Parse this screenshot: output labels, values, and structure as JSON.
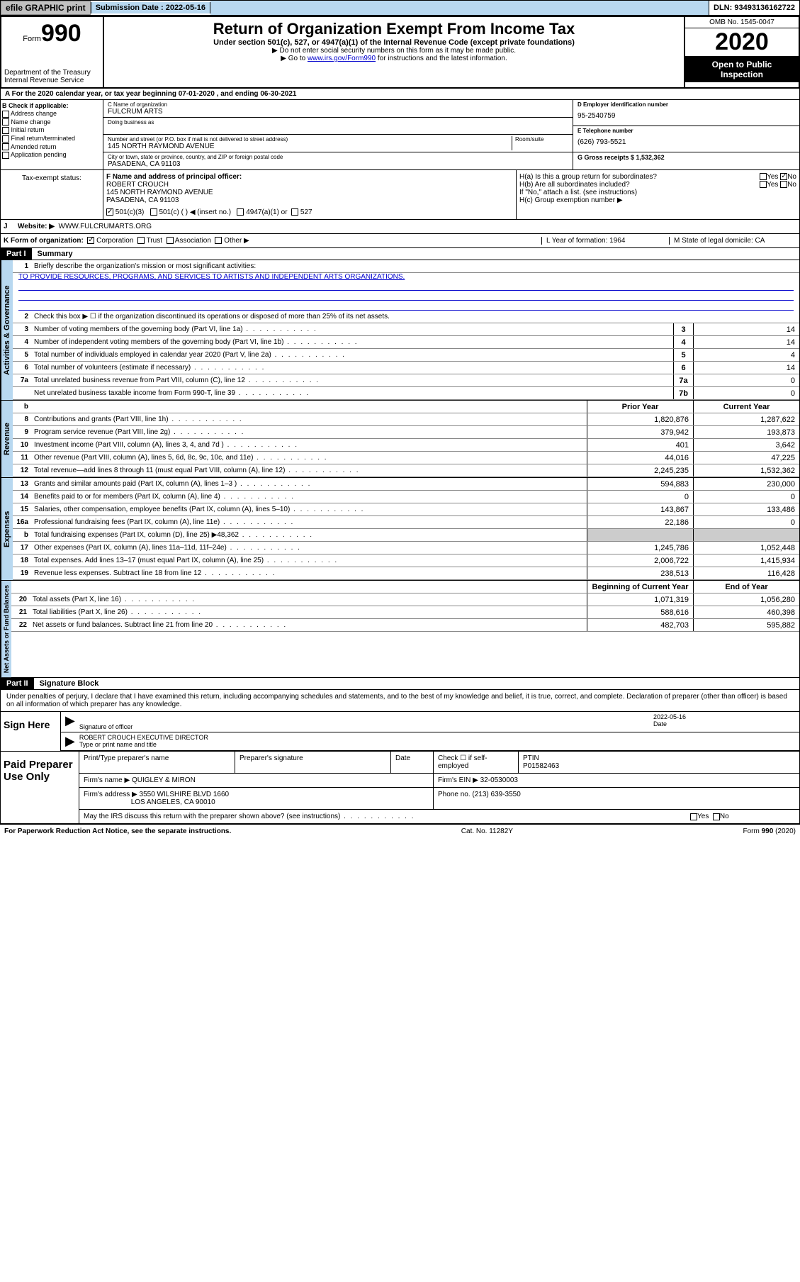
{
  "topbar": {
    "efile": "efile GRAPHIC print",
    "submission_label": "Submission Date : 2022-05-16",
    "dln": "DLN: 93493136162722"
  },
  "header": {
    "form_label": "Form",
    "form_num": "990",
    "dept1": "Department of the Treasury",
    "dept2": "Internal Revenue Service",
    "title": "Return of Organization Exempt From Income Tax",
    "subtitle": "Under section 501(c), 527, or 4947(a)(1) of the Internal Revenue Code (except private foundations)",
    "note1": "▶ Do not enter social security numbers on this form as it may be made public.",
    "note2_pre": "▶ Go to ",
    "note2_link": "www.irs.gov/Form990",
    "note2_post": " for instructions and the latest information.",
    "omb": "OMB No. 1545-0047",
    "year": "2020",
    "open1": "Open to Public",
    "open2": "Inspection"
  },
  "line_a": "A For the 2020 calendar year, or tax year beginning 07-01-2020    , and ending 06-30-2021",
  "box_b": {
    "title": "B Check if applicable:",
    "opts": [
      "Address change",
      "Name change",
      "Initial return",
      "Final return/terminated",
      "Amended return",
      "Application pending"
    ]
  },
  "box_c": {
    "name_label": "C Name of organization",
    "name": "FULCRUM ARTS",
    "dba_label": "Doing business as",
    "addr_label": "Number and street (or P.O. box if mail is not delivered to street address)",
    "room_label": "Room/suite",
    "addr": "145 NORTH RAYMOND AVENUE",
    "city_label": "City or town, state or province, country, and ZIP or foreign postal code",
    "city": "PASADENA, CA  91103"
  },
  "box_d": {
    "label": "D Employer identification number",
    "val": "95-2540759"
  },
  "box_e": {
    "label": "E Telephone number",
    "val": "(626) 793-5521"
  },
  "box_g": {
    "label": "G Gross receipts $ 1,532,362"
  },
  "box_f": {
    "label": "F  Name and address of principal officer:",
    "name": "ROBERT CROUCH",
    "addr1": "145 NORTH RAYMOND AVENUE",
    "addr2": "PASADENA, CA  91103"
  },
  "box_h": {
    "a": "H(a)  Is this a group return for subordinates?",
    "b": "H(b)  Are all subordinates included?",
    "b_note": "If \"No,\" attach a list. (see instructions)",
    "c": "H(c)  Group exemption number ▶",
    "yes": "Yes",
    "no": "No"
  },
  "tax_exempt": {
    "label": "Tax-exempt status:",
    "o1": "501(c)(3)",
    "o2": "501(c) (  ) ◀ (insert no.)",
    "o3": "4947(a)(1) or",
    "o4": "527"
  },
  "line_j": {
    "label": "J",
    "text": "Website: ▶",
    "val": "WWW.FULCRUMARTS.ORG"
  },
  "line_k": {
    "label": "K Form of organization:",
    "opts": [
      "Corporation",
      "Trust",
      "Association",
      "Other ▶"
    ],
    "l_label": "L Year of formation: 1964",
    "m_label": "M State of legal domicile: CA"
  },
  "part1": {
    "hdr": "Part I",
    "title": "Summary"
  },
  "summary": {
    "q1": "Briefly describe the organization's mission or most significant activities:",
    "mission": "TO PROVIDE RESOURCES, PROGRAMS, AND SERVICES TO ARTISTS AND INDEPENDENT ARTS ORGANIZATIONS.",
    "q2": "Check this box ▶ ☐  if the organization discontinued its operations or disposed of more than 25% of its net assets.",
    "rows_gov": [
      {
        "n": "3",
        "d": "Number of voting members of the governing body (Part VI, line 1a)",
        "b": "3",
        "v": "14"
      },
      {
        "n": "4",
        "d": "Number of independent voting members of the governing body (Part VI, line 1b)",
        "b": "4",
        "v": "14"
      },
      {
        "n": "5",
        "d": "Total number of individuals employed in calendar year 2020 (Part V, line 2a)",
        "b": "5",
        "v": "4"
      },
      {
        "n": "6",
        "d": "Total number of volunteers (estimate if necessary)",
        "b": "6",
        "v": "14"
      },
      {
        "n": "7a",
        "d": "Total unrelated business revenue from Part VIII, column (C), line 12",
        "b": "7a",
        "v": "0"
      },
      {
        "n": "",
        "d": "Net unrelated business taxable income from Form 990-T, line 39",
        "b": "7b",
        "v": "0"
      }
    ],
    "col_hdr": {
      "b": "b",
      "py": "Prior Year",
      "cy": "Current Year"
    },
    "rows_rev": [
      {
        "n": "8",
        "d": "Contributions and grants (Part VIII, line 1h)",
        "py": "1,820,876",
        "cy": "1,287,622"
      },
      {
        "n": "9",
        "d": "Program service revenue (Part VIII, line 2g)",
        "py": "379,942",
        "cy": "193,873"
      },
      {
        "n": "10",
        "d": "Investment income (Part VIII, column (A), lines 3, 4, and 7d )",
        "py": "401",
        "cy": "3,642"
      },
      {
        "n": "11",
        "d": "Other revenue (Part VIII, column (A), lines 5, 6d, 8c, 9c, 10c, and 11e)",
        "py": "44,016",
        "cy": "47,225"
      },
      {
        "n": "12",
        "d": "Total revenue—add lines 8 through 11 (must equal Part VIII, column (A), line 12)",
        "py": "2,245,235",
        "cy": "1,532,362"
      }
    ],
    "rows_exp": [
      {
        "n": "13",
        "d": "Grants and similar amounts paid (Part IX, column (A), lines 1–3 )",
        "py": "594,883",
        "cy": "230,000"
      },
      {
        "n": "14",
        "d": "Benefits paid to or for members (Part IX, column (A), line 4)",
        "py": "0",
        "cy": "0"
      },
      {
        "n": "15",
        "d": "Salaries, other compensation, employee benefits (Part IX, column (A), lines 5–10)",
        "py": "143,867",
        "cy": "133,486"
      },
      {
        "n": "16a",
        "d": "Professional fundraising fees (Part IX, column (A), line 11e)",
        "py": "22,186",
        "cy": "0"
      },
      {
        "n": "b",
        "d": "Total fundraising expenses (Part IX, column (D), line 25) ▶48,362",
        "py": "",
        "cy": "",
        "shade": true
      },
      {
        "n": "17",
        "d": "Other expenses (Part IX, column (A), lines 11a–11d, 11f–24e)",
        "py": "1,245,786",
        "cy": "1,052,448"
      },
      {
        "n": "18",
        "d": "Total expenses. Add lines 13–17 (must equal Part IX, column (A), line 25)",
        "py": "2,006,722",
        "cy": "1,415,934"
      },
      {
        "n": "19",
        "d": "Revenue less expenses. Subtract line 18 from line 12",
        "py": "238,513",
        "cy": "116,428"
      }
    ],
    "col_hdr2": {
      "py": "Beginning of Current Year",
      "cy": "End of Year"
    },
    "rows_net": [
      {
        "n": "20",
        "d": "Total assets (Part X, line 16)",
        "py": "1,071,319",
        "cy": "1,056,280"
      },
      {
        "n": "21",
        "d": "Total liabilities (Part X, line 26)",
        "py": "588,616",
        "cy": "460,398"
      },
      {
        "n": "22",
        "d": "Net assets or fund balances. Subtract line 21 from line 20",
        "py": "482,703",
        "cy": "595,882"
      }
    ],
    "vtabs": {
      "gov": "Activities & Governance",
      "rev": "Revenue",
      "exp": "Expenses",
      "net": "Net Assets or Fund Balances"
    }
  },
  "part2": {
    "hdr": "Part II",
    "title": "Signature Block"
  },
  "sig": {
    "intro": "Under penalties of perjury, I declare that I have examined this return, including accompanying schedules and statements, and to the best of my knowledge and belief, it is true, correct, and complete. Declaration of preparer (other than officer) is based on all information of which preparer has any knowledge.",
    "sign_here": "Sign Here",
    "sig_officer": "Signature of officer",
    "date_label": "Date",
    "date": "2022-05-16",
    "name": "ROBERT CROUCH  EXECUTIVE DIRECTOR",
    "name_label": "Type or print name and title"
  },
  "paid": {
    "title": "Paid Preparer Use Only",
    "h1": "Print/Type preparer's name",
    "h2": "Preparer's signature",
    "h3": "Date",
    "check_label": "Check ☐ if self-employed",
    "ptin_label": "PTIN",
    "ptin": "P01582463",
    "firm_label": "Firm's name    ▶",
    "firm": "QUIGLEY & MIRON",
    "ein_label": "Firm's EIN ▶",
    "ein": "32-0530003",
    "addr_label": "Firm's address ▶",
    "addr1": "3550 WILSHIRE BLVD 1660",
    "addr2": "LOS ANGELES, CA  90010",
    "phone_label": "Phone no.",
    "phone": "(213) 639-3550",
    "discuss": "May the IRS discuss this return with the preparer shown above? (see instructions)"
  },
  "footer": {
    "note": "For Paperwork Reduction Act Notice, see the separate instructions.",
    "cat": "Cat. No. 11282Y",
    "form": "Form 990 (2020)"
  }
}
